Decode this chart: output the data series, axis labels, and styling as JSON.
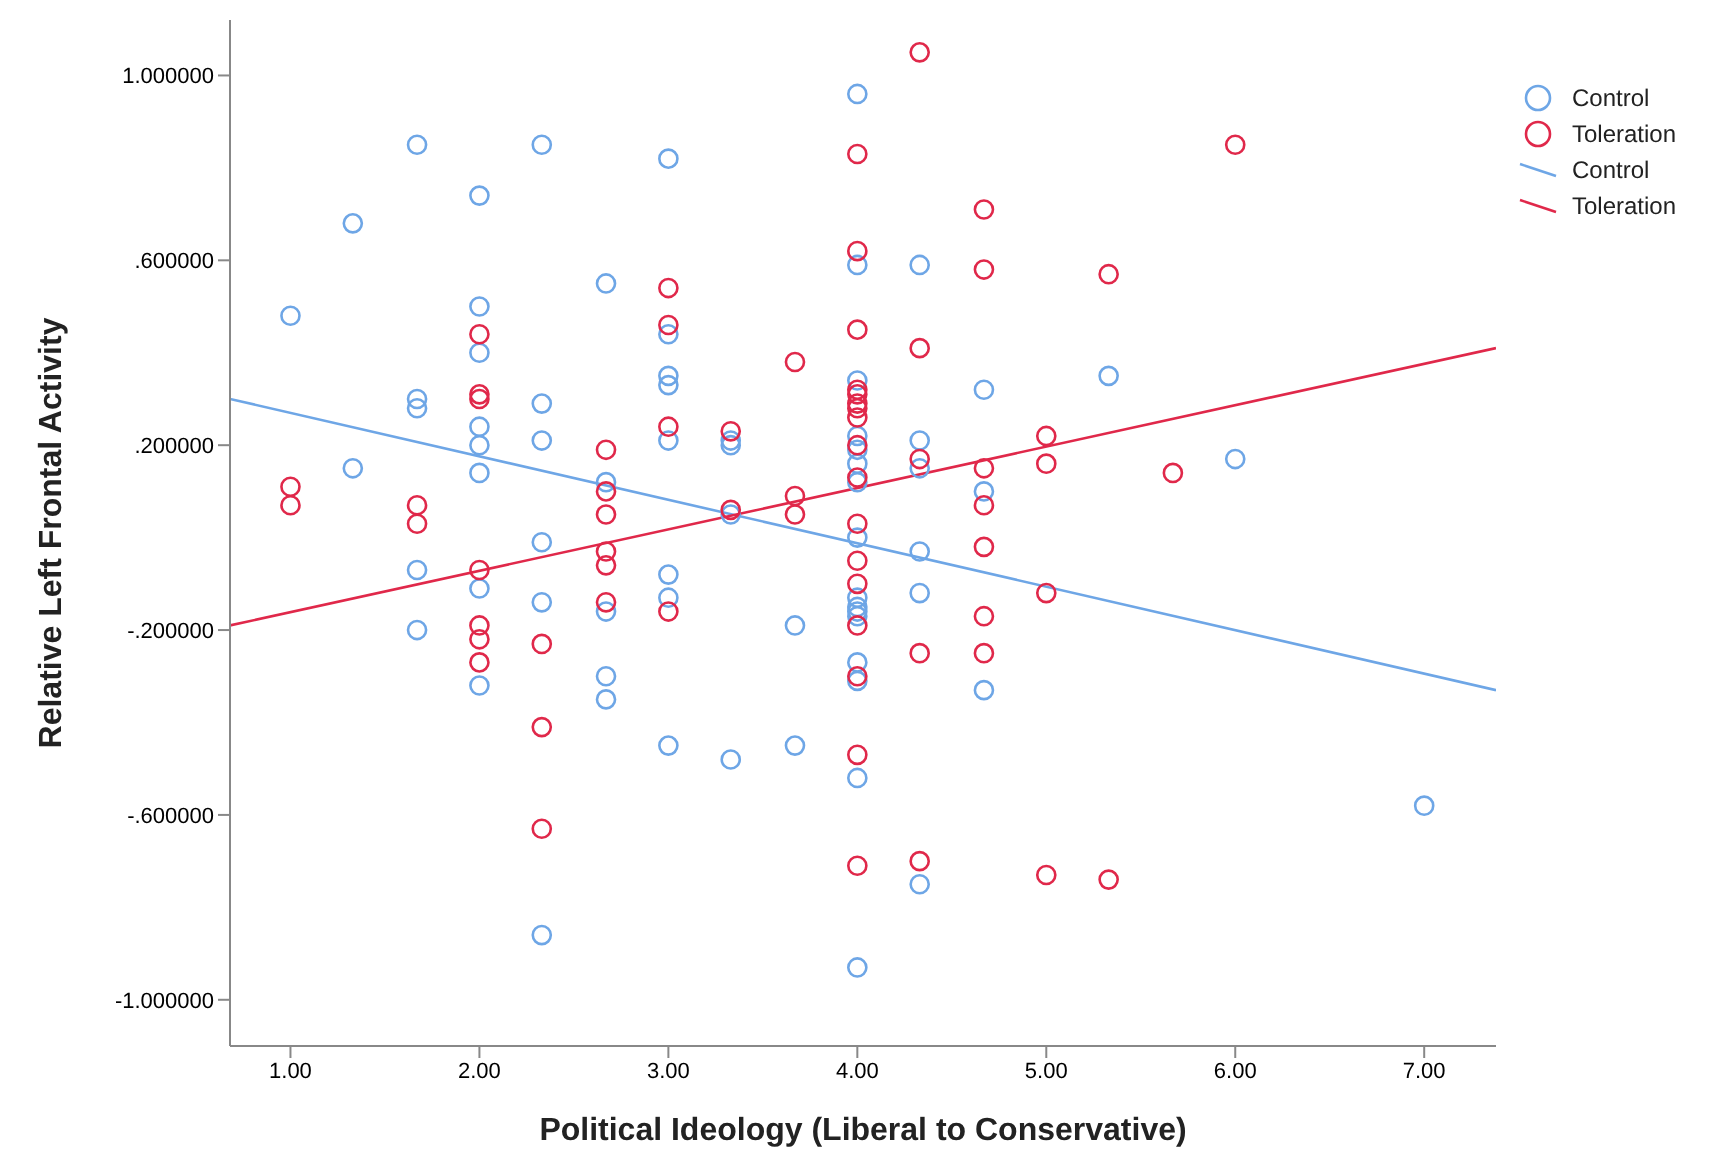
{
  "chart_data": {
    "type": "scatter",
    "xlabel": "Political Ideology (Liberal to Conservative)",
    "ylabel": "Relative Left Frontal Activity",
    "xlim": [
      0.68,
      7.38
    ],
    "xticks": [
      {
        "value": 1,
        "label": "1.00"
      },
      {
        "value": 2,
        "label": "2.00"
      },
      {
        "value": 3,
        "label": "3.00"
      },
      {
        "value": 4,
        "label": "4.00"
      },
      {
        "value": 5,
        "label": "5.00"
      },
      {
        "value": 6,
        "label": "6.00"
      },
      {
        "value": 7,
        "label": "7.00"
      }
    ],
    "ylim": [
      -1.1,
      1.12
    ],
    "yticks": [
      {
        "value": -1,
        "label": "-1.000000"
      },
      {
        "value": -0.6,
        "label": "-.600000"
      },
      {
        "value": -0.2,
        "label": "-.200000"
      },
      {
        "value": 0.2,
        "label": ".200000"
      },
      {
        "value": 0.6,
        "label": ".600000"
      },
      {
        "value": 1,
        "label": "1.000000"
      }
    ],
    "grid": false,
    "legend": "top right",
    "marker": "circle",
    "series": [
      {
        "name": "Control",
        "color": "#6ea6e6",
        "x": [
          1,
          1.33,
          1.33,
          1.67,
          1.67,
          1.67,
          1.67,
          1.67,
          2,
          2,
          2,
          2,
          2,
          2,
          2,
          2,
          2.33,
          2.33,
          2.33,
          2.33,
          2.33,
          2.33,
          2.67,
          2.67,
          2.67,
          2.67,
          2.67,
          3,
          3,
          3,
          3,
          3,
          3,
          3,
          3,
          3.33,
          3.33,
          3.33,
          3.33,
          3.67,
          3.67,
          4,
          4,
          4,
          4,
          4,
          4,
          4,
          4,
          4,
          4,
          4,
          4,
          4,
          4,
          4,
          4,
          4.33,
          4.33,
          4.33,
          4.33,
          4.33,
          4.33,
          4.67,
          4.67,
          4.67,
          5.33,
          6,
          7
        ],
        "values": [
          0.48,
          0.68,
          0.15,
          0.85,
          0.3,
          0.28,
          -0.07,
          -0.2,
          0.74,
          0.5,
          0.4,
          0.24,
          0.2,
          0.14,
          -0.11,
          -0.32,
          0.85,
          0.29,
          0.21,
          -0.01,
          -0.14,
          -0.86,
          0.55,
          0.12,
          -0.16,
          -0.3,
          -0.35,
          0.82,
          0.44,
          0.35,
          0.33,
          0.21,
          -0.08,
          -0.13,
          -0.45,
          0.21,
          0.2,
          0.05,
          -0.48,
          -0.19,
          -0.45,
          0.96,
          0.59,
          0.34,
          0.22,
          0.19,
          0.16,
          0.12,
          0,
          -0.13,
          -0.15,
          -0.16,
          -0.17,
          -0.27,
          -0.31,
          -0.52,
          -0.93,
          0.59,
          0.21,
          0.15,
          -0.03,
          -0.12,
          -0.75,
          0.32,
          0.1,
          -0.33,
          0.35,
          0.17,
          -0.58
        ]
      },
      {
        "name": "Toleration",
        "color": "#e0284a",
        "x": [
          1,
          1,
          1.67,
          1.67,
          2,
          2,
          2,
          2,
          2,
          2,
          2,
          2.33,
          2.33,
          2.33,
          2.67,
          2.67,
          2.67,
          2.67,
          2.67,
          2.67,
          3,
          3,
          3,
          3,
          3.33,
          3.33,
          3.67,
          3.67,
          3.67,
          4,
          4,
          4,
          4,
          4,
          4,
          4,
          4,
          4,
          4,
          4,
          4,
          4,
          4,
          4,
          4,
          4,
          4.33,
          4.33,
          4.33,
          4.33,
          4.33,
          4.67,
          4.67,
          4.67,
          4.67,
          4.67,
          4.67,
          4.67,
          5,
          5,
          5,
          5,
          5.33,
          5.33,
          5.67,
          6
        ],
        "values": [
          0.11,
          0.07,
          0.07,
          0.03,
          0.44,
          0.31,
          0.3,
          -0.07,
          -0.19,
          -0.22,
          -0.27,
          -0.23,
          -0.41,
          -0.63,
          0.19,
          0.1,
          0.05,
          -0.03,
          -0.06,
          -0.14,
          0.54,
          0.46,
          0.24,
          -0.16,
          0.23,
          0.06,
          0.38,
          0.09,
          0.05,
          0.83,
          0.62,
          0.45,
          0.32,
          0.31,
          0.29,
          0.28,
          0.26,
          0.2,
          0.13,
          0.03,
          -0.05,
          -0.1,
          -0.19,
          -0.3,
          -0.47,
          -0.71,
          1.05,
          0.41,
          0.17,
          -0.25,
          -0.7,
          0.71,
          0.58,
          0.15,
          0.07,
          -0.02,
          -0.17,
          -0.25,
          0.22,
          0.16,
          -0.12,
          -0.73,
          0.57,
          -0.74,
          0.14,
          0.85
        ]
      },
      {
        "name": "Control",
        "type": "line",
        "color": "#6ea6e6",
        "line_style": "solid",
        "marker": "none",
        "x": [
          0.68,
          7.38
        ],
        "values": [
          0.3,
          -0.33
        ]
      },
      {
        "name": "Toleration",
        "type": "line",
        "color": "#e0284a",
        "line_style": "solid",
        "marker": "none",
        "x": [
          0.68,
          7.38
        ],
        "values": [
          -0.19,
          0.41
        ]
      }
    ]
  }
}
